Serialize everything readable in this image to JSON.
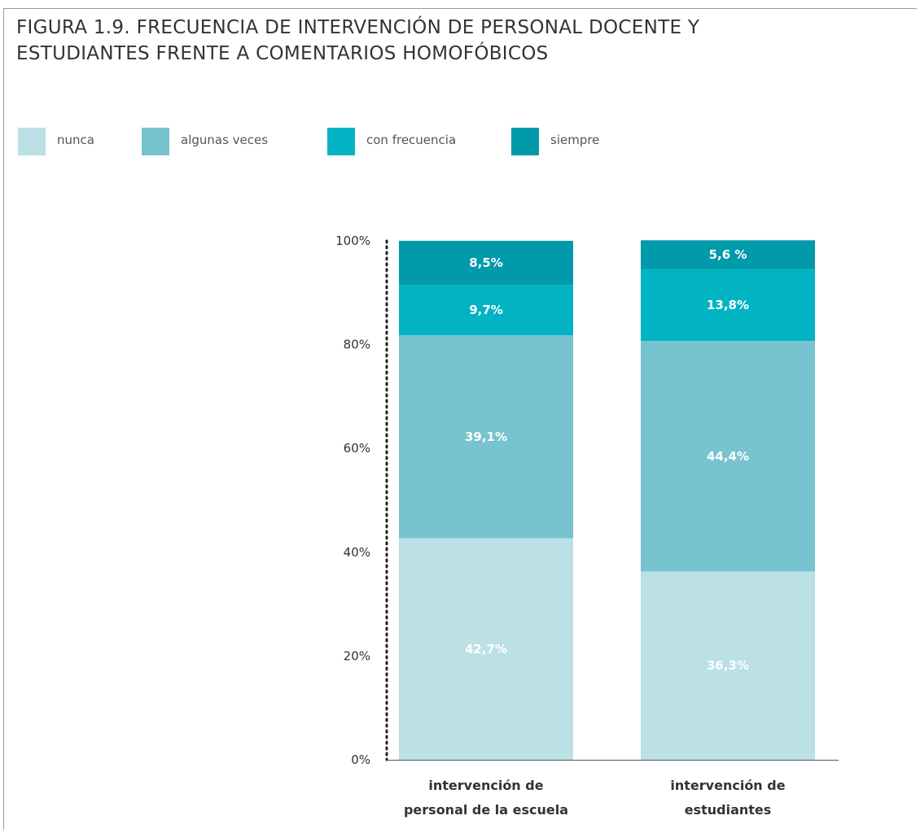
{
  "title": {
    "line1": "FIGURA 1.9. FRECUENCIA DE INTERVENCIÓN DE PERSONAL DOCENTE Y",
    "line2": "ESTUDIANTES FRENTE A COMENTARIOS HOMOFÓBICOS"
  },
  "legend": [
    {
      "label": "nunca",
      "color": "#bbe0e5"
    },
    {
      "label": "algunas veces",
      "color": "#77c3cf"
    },
    {
      "label": "con frecuencia",
      "color": "#02b3c4"
    },
    {
      "label": "siempre",
      "color": "#009aaa"
    }
  ],
  "chart_data": {
    "type": "bar",
    "stacked": true,
    "title": "FIGURA 1.9. FRECUENCIA DE INTERVENCIÓN DE PERSONAL DOCENTE Y ESTUDIANTES FRENTE A COMENTARIOS HOMOFÓBICOS",
    "categories": [
      [
        "intervención de",
        "personal de la escuela"
      ],
      [
        "intervención de",
        "estudiantes"
      ]
    ],
    "series": [
      {
        "name": "nunca",
        "color": "#bbe0e5",
        "values": [
          42.7,
          36.3
        ],
        "labels": [
          "42,7%",
          "36,3%"
        ]
      },
      {
        "name": "algunas veces",
        "color": "#77c3cf",
        "values": [
          39.1,
          44.4
        ],
        "labels": [
          "39,1%",
          "44,4%"
        ]
      },
      {
        "name": "con frecuencia",
        "color": "#02b3c4",
        "values": [
          9.7,
          13.8
        ],
        "labels": [
          "9,7%",
          "13,8%"
        ]
      },
      {
        "name": "siempre",
        "color": "#009aaa",
        "values": [
          8.5,
          5.6
        ],
        "labels": [
          "8,5%",
          "5,6 %"
        ]
      }
    ],
    "ylim": [
      0,
      100
    ],
    "yticks": [
      0,
      20,
      40,
      60,
      80,
      100
    ],
    "ytick_labels": [
      "0%",
      "20%",
      "40%",
      "60%",
      "80%",
      "100%"
    ],
    "legend_position": "top-left",
    "grid": false
  }
}
